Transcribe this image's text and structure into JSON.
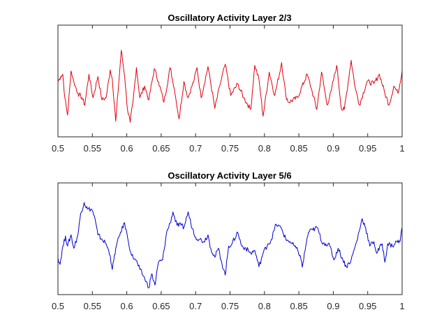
{
  "chart_data": [
    {
      "type": "line",
      "title": "Oscillatory Activity Layer 2/3",
      "xlabel": "",
      "ylabel": "",
      "xlim": [
        0.5,
        1
      ],
      "ylim": [
        -1,
        1
      ],
      "xticks": [
        "0.5",
        "0.55",
        "0.6",
        "0.65",
        "0.7",
        "0.75",
        "0.8",
        "0.85",
        "0.9",
        "0.95",
        "1"
      ],
      "yticks": [],
      "color": "#e0000f",
      "x": [
        0.5,
        0.504,
        0.507,
        0.51,
        0.514,
        0.519,
        0.523,
        0.529,
        0.535,
        0.539,
        0.545,
        0.551,
        0.558,
        0.564,
        0.57,
        0.576,
        0.579,
        0.584,
        0.592,
        0.597,
        0.601,
        0.605,
        0.609,
        0.614,
        0.619,
        0.626,
        0.632,
        0.64,
        0.646,
        0.654,
        0.663,
        0.669,
        0.676,
        0.683,
        0.689,
        0.698,
        0.702,
        0.708,
        0.718,
        0.728,
        0.735,
        0.743,
        0.751,
        0.761,
        0.77,
        0.78,
        0.786,
        0.792,
        0.798,
        0.807,
        0.815,
        0.825,
        0.831,
        0.835,
        0.848,
        0.862,
        0.868,
        0.876,
        0.883,
        0.891,
        0.897,
        0.905,
        0.912,
        0.916,
        0.926,
        0.932,
        0.938,
        0.949,
        0.959,
        0.967,
        0.975,
        0.981,
        0.988,
        0.994,
        1.0
      ],
      "y": [
        -0.01,
        0.08,
        0.12,
        -0.3,
        -0.61,
        0.18,
        -0.01,
        -0.22,
        -0.3,
        -0.43,
        0.12,
        -0.3,
        0.08,
        -0.34,
        -0.3,
        0.2,
        0.03,
        -0.72,
        0.55,
        0.08,
        -0.51,
        -0.74,
        -0.38,
        0.24,
        -0.3,
        -0.09,
        -0.34,
        0.22,
        -0.01,
        -0.38,
        0.24,
        -0.13,
        -0.68,
        -0.01,
        -0.3,
        0.03,
        0.24,
        -0.3,
        0.26,
        -0.49,
        -0.09,
        0.3,
        -0.26,
        -0.05,
        -0.3,
        -0.51,
        0.28,
        0.03,
        -0.63,
        0.16,
        -0.26,
        0.33,
        -0.26,
        -0.38,
        -0.3,
        0.12,
        -0.13,
        -0.51,
        0.16,
        -0.43,
        -0.18,
        0.28,
        -0.51,
        -0.51,
        0.37,
        -0.13,
        -0.43,
        -0.01,
        -0.05,
        0.12,
        -0.22,
        -0.43,
        -0.09,
        -0.22,
        0.18
      ],
      "grid": false
    },
    {
      "type": "line",
      "title": "Oscillatory Activity Layer 5/6",
      "xlabel": "",
      "ylabel": "",
      "xlim": [
        0.5,
        1
      ],
      "ylim": [
        -1,
        1
      ],
      "xticks": [
        "0.5",
        "0.55",
        "0.6",
        "0.65",
        "0.7",
        "0.75",
        "0.8",
        "0.85",
        "0.9",
        "0.95",
        "1"
      ],
      "yticks": [],
      "color": "#0000d0",
      "x": [
        0.5,
        0.503,
        0.506,
        0.511,
        0.514,
        0.519,
        0.523,
        0.529,
        0.533,
        0.538,
        0.543,
        0.549,
        0.553,
        0.558,
        0.564,
        0.57,
        0.576,
        0.579,
        0.584,
        0.591,
        0.597,
        0.601,
        0.607,
        0.613,
        0.619,
        0.626,
        0.632,
        0.636,
        0.641,
        0.646,
        0.652,
        0.658,
        0.663,
        0.667,
        0.673,
        0.679,
        0.683,
        0.689,
        0.693,
        0.7,
        0.706,
        0.712,
        0.718,
        0.722,
        0.728,
        0.733,
        0.737,
        0.743,
        0.748,
        0.753,
        0.761,
        0.767,
        0.773,
        0.78,
        0.786,
        0.792,
        0.798,
        0.805,
        0.809,
        0.817,
        0.825,
        0.831,
        0.837,
        0.846,
        0.852,
        0.855,
        0.86,
        0.864,
        0.87,
        0.877,
        0.883,
        0.889,
        0.895,
        0.901,
        0.907,
        0.914,
        0.919,
        0.926,
        0.934,
        0.942,
        0.947,
        0.953,
        0.959,
        0.963,
        0.971,
        0.975,
        0.979,
        0.986,
        0.992,
        0.997,
        1.0
      ],
      "y": [
        -0.34,
        -0.46,
        -0.21,
        0.05,
        -0.13,
        0.07,
        -0.17,
        0.07,
        0.45,
        0.65,
        0.53,
        0.53,
        0.4,
        0.07,
        -0.01,
        -0.09,
        -0.3,
        -0.55,
        -0.17,
        0.12,
        0.28,
        0.03,
        -0.3,
        -0.38,
        -0.55,
        -0.71,
        -0.88,
        -0.63,
        -0.83,
        -0.42,
        -0.38,
        0.12,
        0.28,
        0.48,
        0.24,
        0.24,
        0.2,
        0.48,
        0.28,
        0.03,
        -0.01,
        -0.05,
        0.07,
        -0.17,
        -0.33,
        -0.17,
        -0.38,
        -0.65,
        -0.13,
        -0.09,
        0.12,
        -0.13,
        -0.17,
        -0.26,
        -0.21,
        -0.5,
        -0.26,
        -0.09,
        -0.05,
        0.26,
        0.18,
        -0.01,
        -0.05,
        -0.17,
        -0.3,
        -0.51,
        -0.13,
        0.12,
        0.16,
        0.2,
        -0.05,
        -0.09,
        -0.13,
        -0.38,
        -0.17,
        -0.38,
        -0.5,
        -0.38,
        -0.05,
        0.36,
        0.2,
        -0.13,
        -0.05,
        -0.26,
        -0.09,
        -0.42,
        -0.09,
        -0.13,
        -0.05,
        -0.05,
        0.2
      ],
      "grid": false
    }
  ]
}
